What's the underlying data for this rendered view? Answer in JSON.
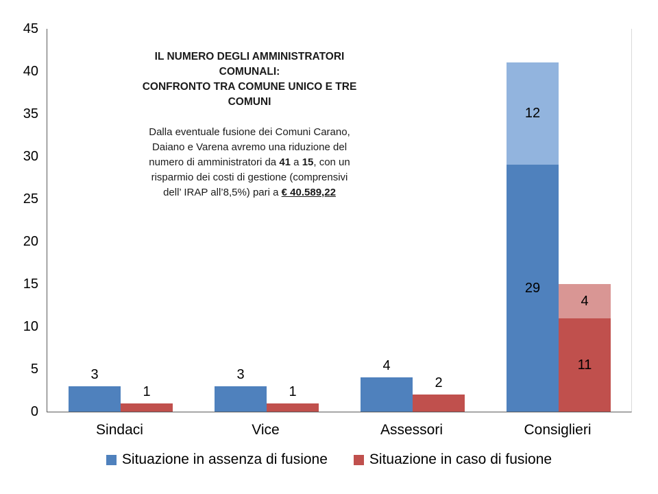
{
  "annotation": {
    "title_lines": [
      "IL NUMERO DEGLI AMMINISTRATORI",
      "COMUNALI:",
      "CONFRONTO TRA COMUNE UNICO E TRE",
      "COMUNI"
    ],
    "body_lines": [
      [
        {
          "t": "Dalla eventuale fusione dei Comuni Carano,"
        }
      ],
      [
        {
          "t": "Daiano e Varena avremo una riduzione del"
        }
      ],
      [
        {
          "t": "numero di amministratori da "
        },
        {
          "t": "41",
          "b": true
        },
        {
          "t": " a "
        },
        {
          "t": "15",
          "b": true
        },
        {
          "t": ", con un"
        }
      ],
      [
        {
          "t": "risparmio dei costi di gestione (comprensivi"
        }
      ],
      [
        {
          "t": "dell’ IRAP all’8,5%) pari a "
        },
        {
          "t": "€ 40.589,22",
          "b": true,
          "u": true
        }
      ]
    ]
  },
  "chart_data": {
    "type": "bar",
    "subtype": "stacked-grouped",
    "title": "IL NUMERO DEGLI AMMINISTRATORI COMUNALI: CONFRONTO TRA COMUNE UNICO E TRE COMUNI",
    "categories": [
      "Sindaci",
      "Vice",
      "Assessori",
      "Consiglieri"
    ],
    "series": [
      {
        "name": "Situazione in assenza di fusione",
        "base_values": [
          3,
          3,
          4,
          29
        ],
        "top_values": [
          0,
          0,
          0,
          12
        ],
        "base_color": "#4F81BD",
        "top_color": "#92B4DE"
      },
      {
        "name": "Situazione in caso di fusione",
        "base_values": [
          1,
          1,
          2,
          11
        ],
        "top_values": [
          0,
          0,
          0,
          4
        ],
        "base_color": "#C0504D",
        "top_color": "#D99694"
      }
    ],
    "totals": {
      "no_fusion": 41,
      "fusion": 15
    },
    "ylim": [
      0,
      45
    ],
    "yticks": [
      0,
      5,
      10,
      15,
      20,
      25,
      30,
      35,
      40,
      45
    ],
    "grid": false,
    "legend_position": "bottom",
    "label_outside_threshold": 5
  }
}
